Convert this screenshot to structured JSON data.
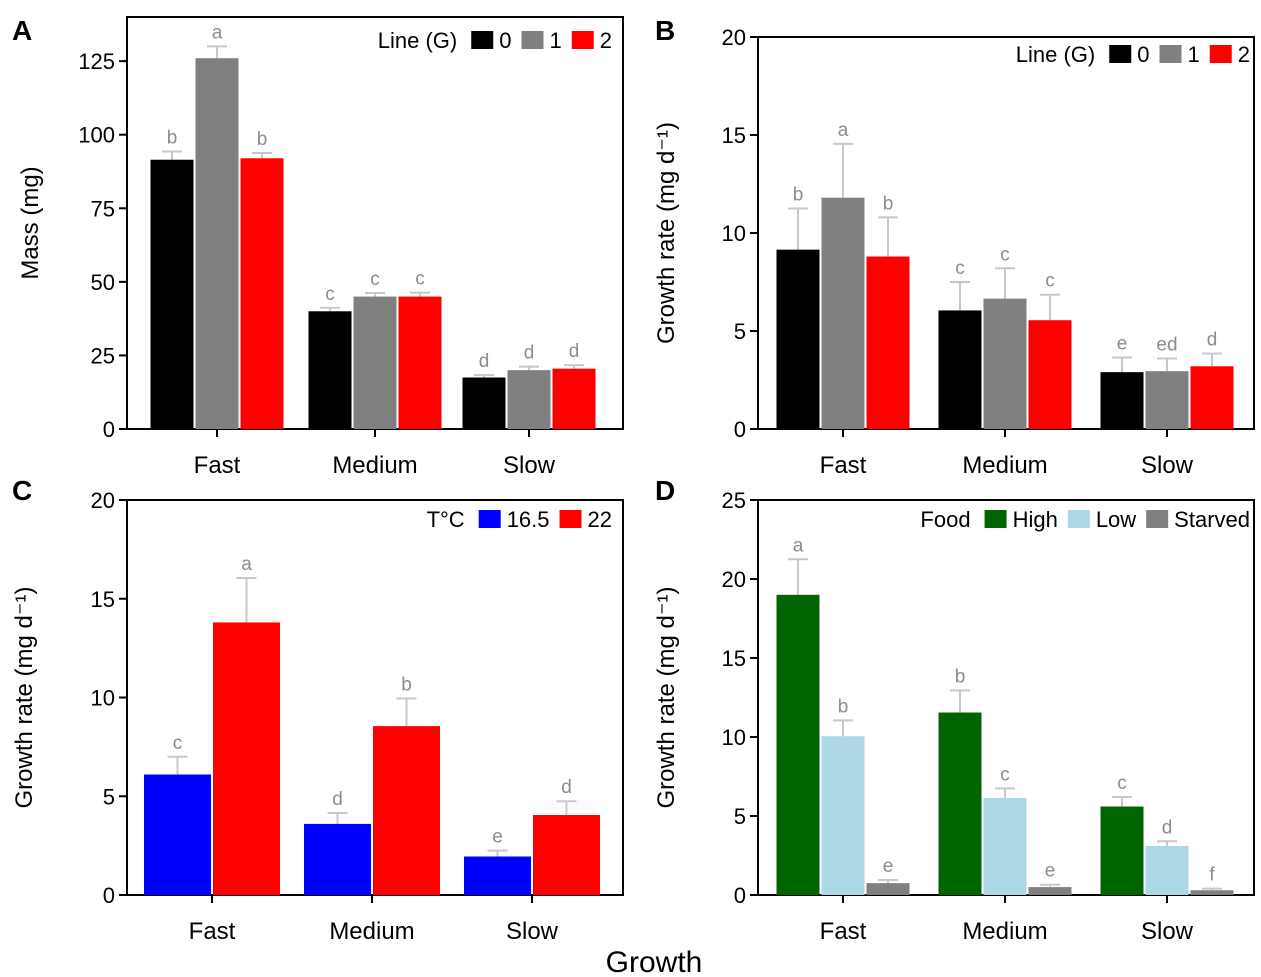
{
  "figure": {
    "xlabel": "Growth"
  },
  "chart_data": [
    {
      "type": "bar",
      "panel": "A",
      "ylabel": "Mass (mg)",
      "ylim": [
        0,
        140
      ],
      "yticks": [
        0,
        25,
        50,
        75,
        100,
        125
      ],
      "categories": [
        "Fast",
        "Medium",
        "Slow"
      ],
      "legend_title": "Line (G)",
      "legend_position": "top-right",
      "series": [
        {
          "name": "0",
          "color": "#000000",
          "values": [
            91.5,
            40,
            17.5
          ],
          "errors": [
            2.8,
            1.2,
            0.8
          ],
          "labels": [
            "b",
            "c",
            "d"
          ]
        },
        {
          "name": "1",
          "color": "#808080",
          "values": [
            126,
            45,
            20
          ],
          "errors": [
            4,
            1.2,
            1.2
          ],
          "labels": [
            "a",
            "c",
            "d"
          ]
        },
        {
          "name": "2",
          "color": "#ff0000",
          "values": [
            92,
            45,
            20.5
          ],
          "errors": [
            1.8,
            1.3,
            1.2
          ],
          "labels": [
            "b",
            "c",
            "d"
          ]
        }
      ]
    },
    {
      "type": "bar",
      "panel": "B",
      "ylabel": "Growth rate (mg d⁻¹)",
      "ylim": [
        0,
        20
      ],
      "yticks": [
        0,
        5,
        10,
        15,
        20
      ],
      "categories": [
        "Fast",
        "Medium",
        "Slow"
      ],
      "legend_title": "Line (G)",
      "legend_position": "top-right",
      "series": [
        {
          "name": "0",
          "color": "#000000",
          "values": [
            9.15,
            6.05,
            2.9
          ],
          "errors": [
            2.1,
            1.45,
            0.75
          ],
          "labels": [
            "b",
            "c",
            "e"
          ]
        },
        {
          "name": "1",
          "color": "#808080",
          "values": [
            11.8,
            6.65,
            2.95
          ],
          "errors": [
            2.75,
            1.55,
            0.65
          ],
          "labels": [
            "a",
            "c",
            "ed"
          ]
        },
        {
          "name": "2",
          "color": "#ff0000",
          "values": [
            8.8,
            5.55,
            3.2
          ],
          "errors": [
            2,
            1.3,
            0.65
          ],
          "labels": [
            "b",
            "c",
            "d"
          ]
        }
      ]
    },
    {
      "type": "bar",
      "panel": "C",
      "ylabel": "Growth rate (mg d⁻¹)",
      "ylim": [
        0,
        20
      ],
      "yticks": [
        0,
        5,
        10,
        15,
        20
      ],
      "categories": [
        "Fast",
        "Medium",
        "Slow"
      ],
      "legend_title": "T°C",
      "legend_position": "top-right",
      "series": [
        {
          "name": "16.5",
          "color": "#0000ff",
          "values": [
            6.1,
            3.6,
            1.95
          ],
          "errors": [
            0.9,
            0.55,
            0.3
          ],
          "labels": [
            "c",
            "d",
            "e"
          ]
        },
        {
          "name": "22",
          "color": "#ff0000",
          "values": [
            13.8,
            8.55,
            4.05
          ],
          "errors": [
            2.25,
            1.4,
            0.7
          ],
          "labels": [
            "a",
            "b",
            "d"
          ]
        }
      ]
    },
    {
      "type": "bar",
      "panel": "D",
      "ylabel": "Growth rate (mg d⁻¹)",
      "ylim": [
        0,
        25
      ],
      "yticks": [
        0,
        5,
        10,
        15,
        20,
        25
      ],
      "categories": [
        "Fast",
        "Medium",
        "Slow"
      ],
      "legend_title": "Food",
      "legend_position": "top-right",
      "series": [
        {
          "name": "High",
          "color": "#006400",
          "values": [
            19,
            11.55,
            5.6
          ],
          "errors": [
            2.25,
            1.4,
            0.6
          ],
          "labels": [
            "a",
            "b",
            "c"
          ]
        },
        {
          "name": "Low",
          "color": "#add8e6",
          "values": [
            10.05,
            6.15,
            3.1
          ],
          "errors": [
            1,
            0.6,
            0.3
          ],
          "labels": [
            "b",
            "c",
            "d"
          ]
        },
        {
          "name": "Starved",
          "color": "#808080",
          "values": [
            0.75,
            0.5,
            0.3
          ],
          "errors": [
            0.2,
            0.15,
            0.1
          ],
          "labels": [
            "e",
            "e",
            "f"
          ]
        }
      ]
    }
  ]
}
